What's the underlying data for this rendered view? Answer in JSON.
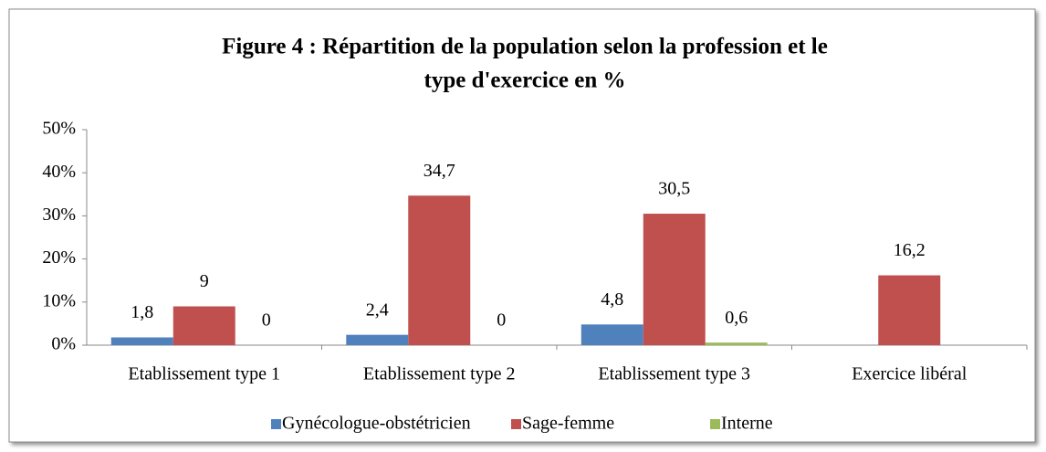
{
  "chart_data": {
    "type": "bar",
    "title": "Figure 4 : Répartition de la population selon la profession et le type d'exercice en %",
    "title_lines": [
      "Figure 4 : Répartition de la population selon la profession et le",
      "type d'exercice en %"
    ],
    "categories": [
      "Etablissement type 1",
      "Etablissement type 2",
      "Etablissement type 3",
      "Exercice libéral"
    ],
    "series": [
      {
        "name": "Gynécologue-obstétricien",
        "color": "#4f81bd",
        "values": [
          1.8,
          2.4,
          4.8,
          null
        ],
        "value_labels": [
          "1,8",
          "2,4",
          "4,8",
          null
        ]
      },
      {
        "name": "Sage-femme",
        "color": "#c0504d",
        "values": [
          9,
          34.7,
          30.5,
          16.2
        ],
        "value_labels": [
          "9",
          "34,7",
          "30,5",
          "16,2"
        ]
      },
      {
        "name": "Interne",
        "color": "#9bbb59",
        "values": [
          0,
          0,
          0.6,
          null
        ],
        "value_labels": [
          "0",
          "0",
          "0,6",
          null
        ]
      }
    ],
    "ylim": [
      0,
      50
    ],
    "yticks": [
      {
        "value": 0,
        "label": "0%"
      },
      {
        "value": 10,
        "label": "10%"
      },
      {
        "value": 20,
        "label": "20%"
      },
      {
        "value": 30,
        "label": "30%"
      },
      {
        "value": 40,
        "label": "40%"
      },
      {
        "value": 50,
        "label": "50%"
      }
    ],
    "grid": false,
    "legend": "bottom"
  }
}
